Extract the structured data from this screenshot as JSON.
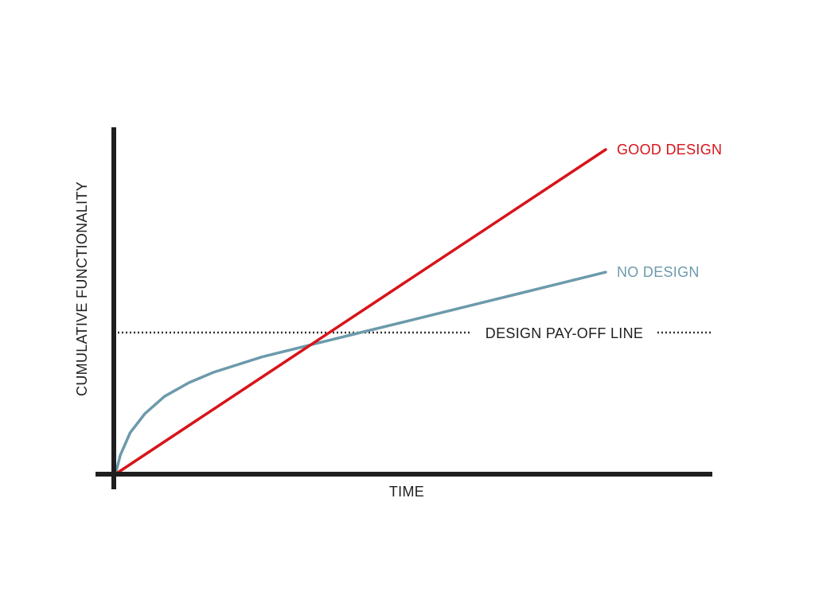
{
  "chart_data": {
    "type": "line",
    "title": "",
    "xlabel": "TIME",
    "ylabel": "CUMULATIVE  FUNCTIONALITY",
    "grid": false,
    "legend": "none",
    "xlim": [
      0,
      1.2
    ],
    "ylim": [
      0,
      1.0
    ],
    "series": [
      {
        "name": "GOOD DESIGN",
        "color": "#d7141a",
        "points": [
          [
            0,
            0
          ],
          [
            1.0,
            0.94
          ]
        ]
      },
      {
        "name": "NO DESIGN",
        "color": "#6c9aab",
        "points": [
          [
            0,
            0
          ],
          [
            0.01,
            0.055
          ],
          [
            0.03,
            0.12
          ],
          [
            0.06,
            0.175
          ],
          [
            0.1,
            0.225
          ],
          [
            0.15,
            0.265
          ],
          [
            0.2,
            0.295
          ],
          [
            0.3,
            0.34
          ],
          [
            0.4,
            0.375
          ],
          [
            0.5,
            0.41
          ],
          [
            0.6,
            0.445
          ],
          [
            0.7,
            0.48
          ],
          [
            0.8,
            0.515
          ],
          [
            0.9,
            0.55
          ],
          [
            1.0,
            0.585
          ]
        ]
      }
    ],
    "reference_line": {
      "label": "DESIGN PAY-OFF LINE",
      "y": 0.41,
      "style": "dotted",
      "color": "#333333"
    }
  }
}
